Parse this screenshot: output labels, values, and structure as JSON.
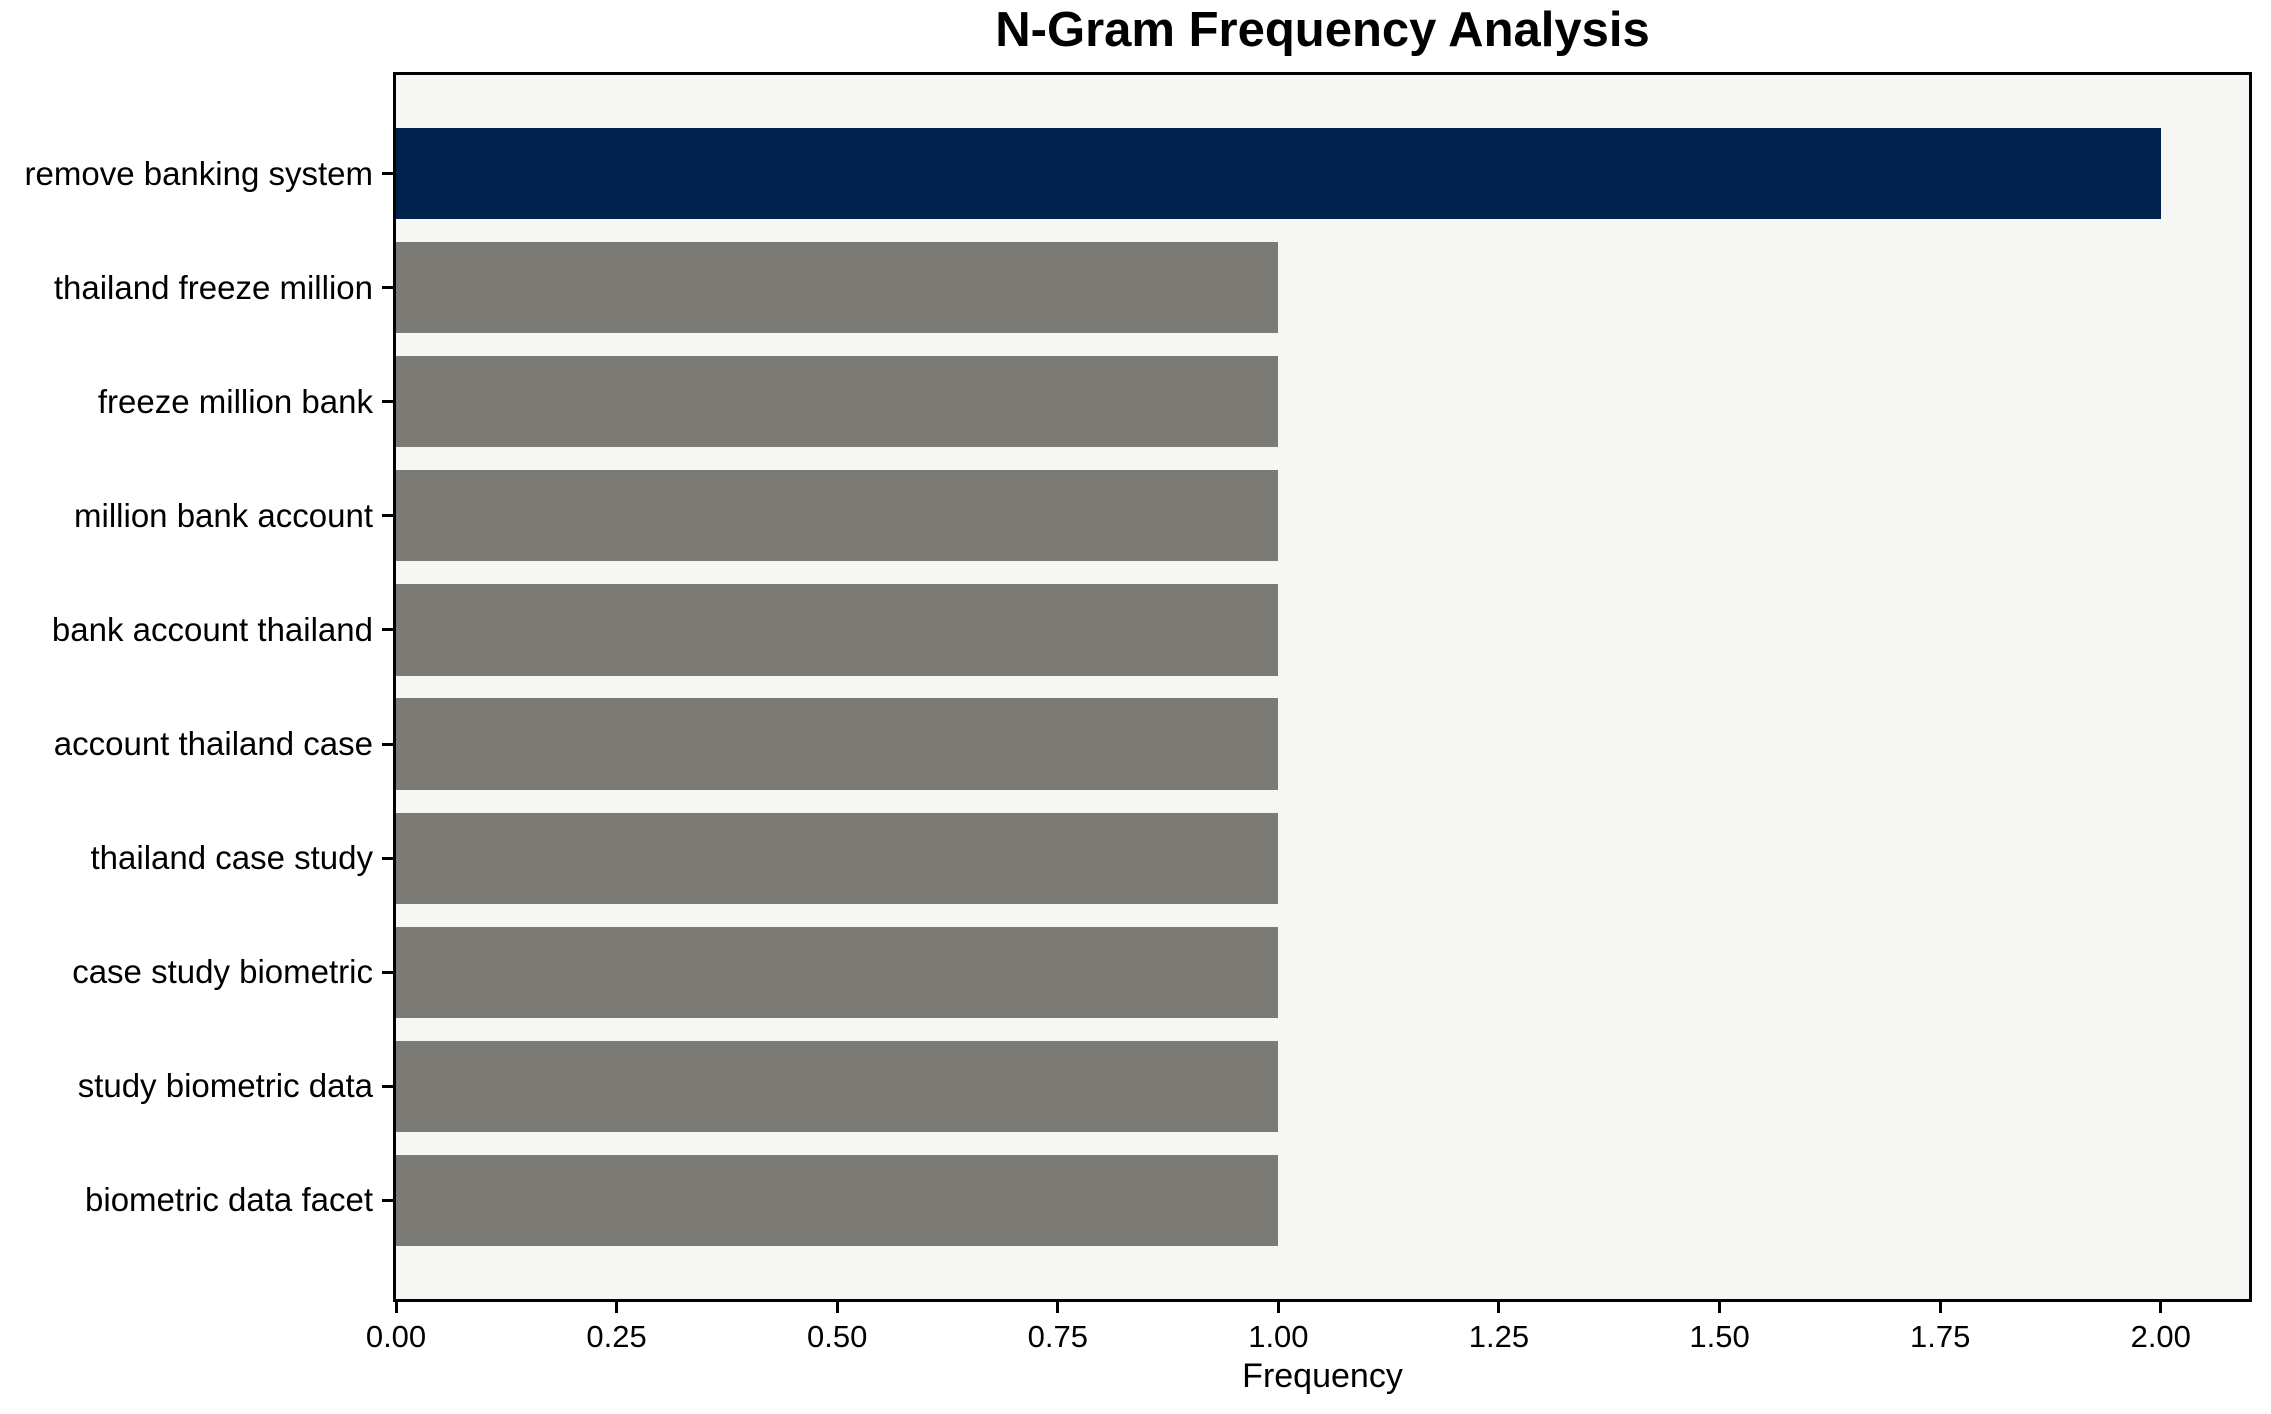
{
  "figure": {
    "background": "#ffffff",
    "plot_background": "#f6f6f4",
    "axis_color": "#000000",
    "text_color": "#000000"
  },
  "chart_data": {
    "type": "bar",
    "orientation": "horizontal",
    "title": "N-Gram Frequency Analysis",
    "xlabel": "Frequency",
    "ylabel": "",
    "categories": [
      "remove banking system",
      "thailand freeze million",
      "freeze million bank",
      "million bank account",
      "bank account thailand",
      "account thailand case",
      "thailand case study",
      "case study biometric",
      "study biometric data",
      "biometric data facet"
    ],
    "values": [
      2,
      1,
      1,
      1,
      1,
      1,
      1,
      1,
      1,
      1
    ],
    "bar_colors": [
      "#00224d",
      "#7b7a75",
      "#7b7a75",
      "#7b7a75",
      "#7b7a75",
      "#7b7a75",
      "#7b7a75",
      "#7b7a75",
      "#7b7a75",
      "#7b7a75"
    ],
    "highlight_color": "#00224d",
    "default_bar_color": "#7b7a75",
    "xlim": [
      0,
      2.1
    ],
    "xticks": [
      0,
      0.25,
      0.5,
      0.75,
      1.0,
      1.25,
      1.5,
      1.75,
      2.0
    ],
    "xtick_labels": [
      "0.00",
      "0.25",
      "0.50",
      "0.75",
      "1.00",
      "1.25",
      "1.50",
      "1.75",
      "2.00"
    ],
    "grid": false,
    "legend": false
  }
}
